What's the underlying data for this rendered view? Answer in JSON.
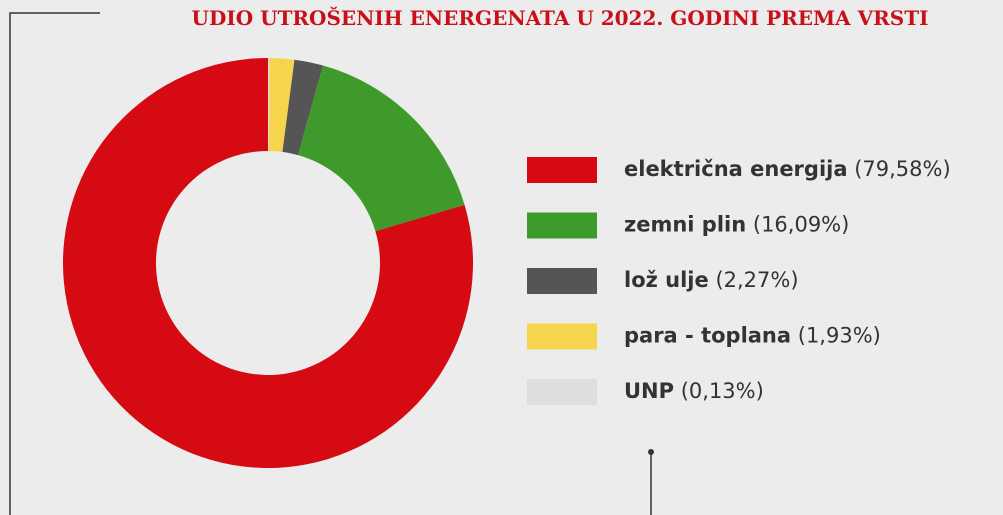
{
  "chart_data": {
    "type": "donut",
    "title": "UDIO UTROŠENIH ENERGENATA U 2022. GODINI PREMA VRSTI",
    "categories": [
      "električna energija",
      "zemni plin",
      "lož ulje",
      "para - toplana",
      "UNP"
    ],
    "values": [
      79.58,
      16.09,
      2.27,
      1.93,
      0.13
    ],
    "value_labels": [
      "(79,58%)",
      "(16,09%)",
      "(2,27%)",
      "(1,93%)",
      "(0,13%)"
    ],
    "colors": [
      "#d50a12",
      "#3f9a2c",
      "#555555",
      "#f4d54c",
      "#dedede"
    ],
    "legend": "right"
  }
}
